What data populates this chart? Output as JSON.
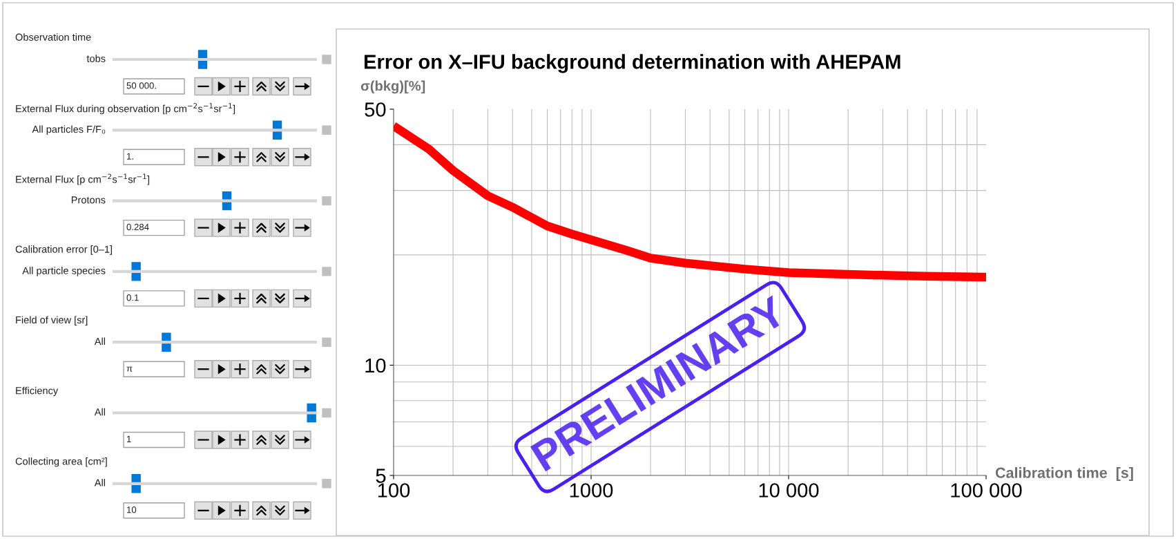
{
  "chart_data": [
    {
      "type": "other",
      "annotations": [
        "Observation time",
        "tobs",
        "50 000.",
        "External Flux during observation [p cm$^{−2}$s$^{−1}$sr$^{−1}$]",
        "All particles F/F₀",
        "1.",
        "External Flux [p cm$^{−2}$s$^{−1}$sr$^{−1}$]",
        "Protons",
        "0.284",
        "Calibration error [0–1]",
        "All particle species",
        "0.1",
        "Field of view [sr]",
        "All",
        "π",
        "Efficiency",
        "All",
        "1",
        "Collecting area [cm²]",
        "All",
        "10"
      ]
    },
    {
      "type": "line",
      "title": "Error on X–IFU background determination with AHEPAM",
      "xlabel": "Calibration time  [s]",
      "ylabel": "σ(bkg)[%]",
      "x": [
        100,
        150,
        200,
        300,
        400,
        600,
        800,
        1000,
        1500,
        2000,
        3000,
        4000,
        6000,
        10000,
        20000,
        30000,
        50000,
        100000
      ],
      "series": [
        {
          "color": "#ff0000",
          "values": [
            45,
            39,
            34,
            29,
            27,
            24,
            22.8,
            22,
            20.6,
            19.6,
            19,
            18.7,
            18.3,
            17.9,
            17.7,
            17.6,
            17.5,
            17.4
          ]
        }
      ],
      "log": "xy",
      "xlim": [
        100,
        100000
      ],
      "ylim": [
        5,
        50
      ],
      "xticks": [
        100,
        1000,
        {
          "value": 10000,
          "label": "10 000"
        },
        {
          "value": 100000,
          "label": "100 000"
        }
      ],
      "yticks": [
        5,
        10,
        50
      ],
      "grid": true,
      "annotations": [
        "PRELIMINARY"
      ]
    }
  ]
}
